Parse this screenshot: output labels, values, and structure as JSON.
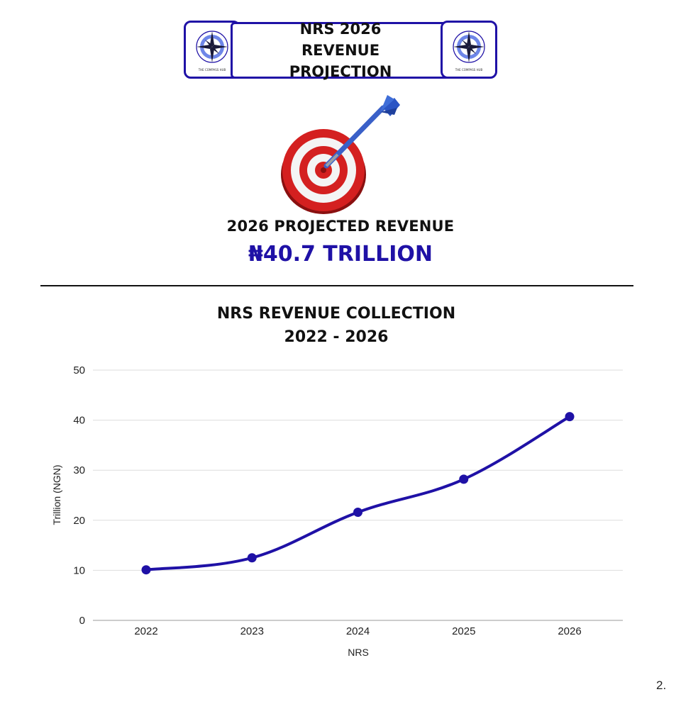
{
  "header": {
    "title": "NRS 2026 REVENUE PROJECTION",
    "logo_icon": "compass-logo",
    "logo_text": "THE COMPASS HUB"
  },
  "headline": {
    "label": "2026 PROJECTED REVENUE",
    "value": "₦40.7 TRILLION",
    "icon": "dart-target-icon"
  },
  "chart_title": {
    "line1": "NRS REVENUE COLLECTION",
    "line2": "2022 - 2026"
  },
  "page_number": "2.",
  "colors": {
    "accent": "#1f11a6",
    "grid": "#dddddd"
  },
  "chart_data": {
    "type": "line",
    "title": "NRS REVENUE COLLECTION 2022 - 2026",
    "xlabel": "NRS",
    "ylabel": "Trillion (NGN)",
    "x": [
      "2022",
      "2023",
      "2024",
      "2025",
      "2026"
    ],
    "series": [
      {
        "values": [
          10.1,
          12.5,
          21.6,
          28.2,
          40.7
        ]
      }
    ],
    "ylim": [
      0,
      50
    ],
    "yticks": [
      0,
      10,
      20,
      30,
      40,
      50
    ],
    "grid": true,
    "smooth": true
  }
}
